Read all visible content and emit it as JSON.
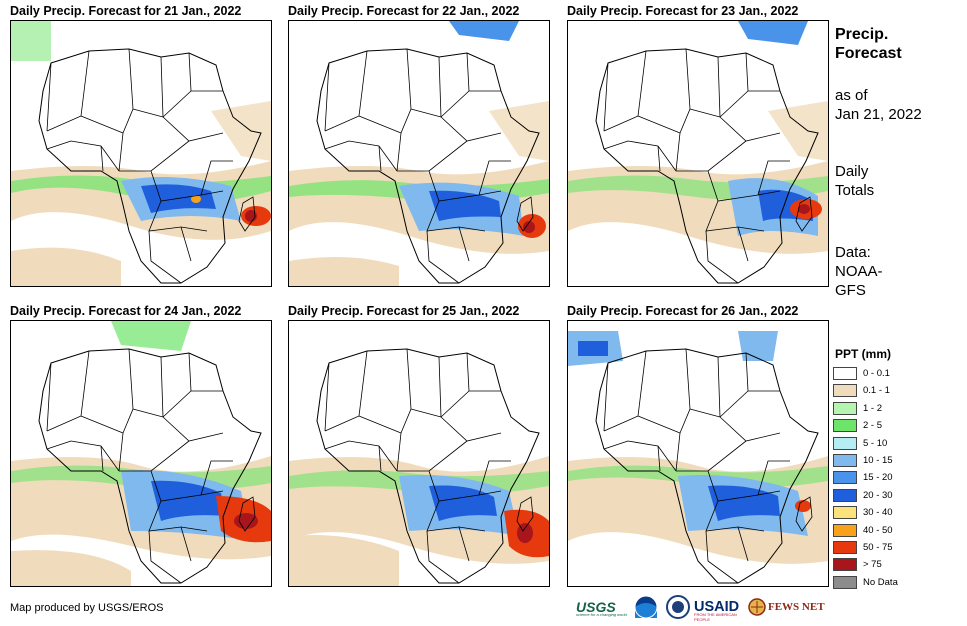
{
  "panels": [
    {
      "title": "Daily Precip. Forecast for 21 Jan., 2022"
    },
    {
      "title": "Daily Precip. Forecast for 22 Jan., 2022"
    },
    {
      "title": "Daily Precip. Forecast for 23 Jan., 2022"
    },
    {
      "title": "Daily Precip. Forecast for 24 Jan., 2022"
    },
    {
      "title": "Daily Precip. Forecast for 25 Jan., 2022"
    },
    {
      "title": "Daily Precip. Forecast for 26 Jan., 2022"
    }
  ],
  "side": {
    "title_line1": "Precip.",
    "title_line2": "Forecast",
    "asof_line1": "as of",
    "asof_line2": "Jan 21, 2022",
    "totals_line1": "Daily",
    "totals_line2": "Totals",
    "data_line1": "Data:",
    "data_line2": "NOAA-",
    "data_line3": "GFS"
  },
  "legend": {
    "title": "PPT (mm)",
    "items": [
      {
        "label": "0 - 0.1",
        "color": "#ffffff"
      },
      {
        "label": "0.1 - 1",
        "color": "#f0dcbc"
      },
      {
        "label": "1 - 2",
        "color": "#b5f5b0"
      },
      {
        "label": "2 - 5",
        "color": "#6ee46a"
      },
      {
        "label": "5 - 10",
        "color": "#b4eef4"
      },
      {
        "label": "10 - 15",
        "color": "#7fb9ee"
      },
      {
        "label": "15 - 20",
        "color": "#4a93ea"
      },
      {
        "label": "20 - 30",
        "color": "#1f5fdc"
      },
      {
        "label": "30 - 40",
        "color": "#fbe27a"
      },
      {
        "label": "40 - 50",
        "color": "#f7a21a"
      },
      {
        "label": "50 - 75",
        "color": "#e7390e"
      },
      {
        "label": "> 75",
        "color": "#a8161c"
      },
      {
        "label": "No Data",
        "color": "#8c8c8c"
      }
    ]
  },
  "credit": "Map produced by USGS/EROS",
  "logos": {
    "usgs": "USGS",
    "usgs_tagline": "science for a changing world",
    "usaid": "USAID",
    "usaid_tagline": "FROM THE AMERICAN PEOPLE",
    "fews": "FEWS NET"
  }
}
